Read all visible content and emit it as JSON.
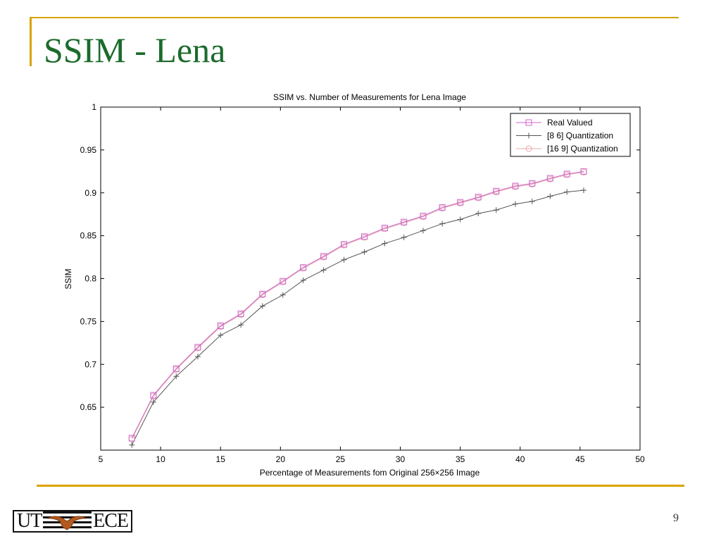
{
  "slide": {
    "title": "SSIM - Lena",
    "page_number": "9"
  },
  "logo": {
    "left_text": "UT",
    "right_text": "ECE"
  },
  "colors": {
    "accent": "#d9a300",
    "title": "#1b6b2c",
    "real_valued": "#cc66cc",
    "quant_8_6": "#555555",
    "quant_16_9": "#e8a8a8"
  },
  "chart_data": {
    "type": "line",
    "title": "SSIM vs. Number of Measurements for Lena Image",
    "xlabel": "Percentage of Measurements fom Original 256×256 Image",
    "ylabel": "SSIM",
    "xlim": [
      5,
      50
    ],
    "ylim": [
      0.6,
      1.0
    ],
    "xticks": [
      5,
      10,
      15,
      20,
      25,
      30,
      35,
      40,
      45,
      50
    ],
    "yticks": [
      0.65,
      0.7,
      0.75,
      0.8,
      0.85,
      0.9,
      0.95,
      1
    ],
    "ytick_labels": [
      "0.65",
      "0.7",
      "0.75",
      "0.8",
      "0.85",
      "0.9",
      "0.95",
      "1"
    ],
    "grid": false,
    "legend_position": "top-right",
    "x": [
      7.6,
      9.4,
      11.3,
      13.1,
      15.0,
      16.7,
      18.5,
      20.2,
      21.9,
      23.6,
      25.3,
      27.0,
      28.7,
      30.3,
      31.9,
      33.5,
      35.0,
      36.5,
      38.0,
      39.6,
      41.0,
      42.5,
      43.9,
      45.3
    ],
    "series": [
      {
        "name": "Real Valued",
        "marker": "square",
        "color": "#cc66cc",
        "values": [
          0.614,
          0.664,
          0.695,
          0.72,
          0.745,
          0.759,
          0.782,
          0.797,
          0.813,
          0.826,
          0.84,
          0.849,
          0.859,
          0.866,
          0.873,
          0.883,
          0.889,
          0.895,
          0.902,
          0.908,
          0.911,
          0.917,
          0.922,
          0.925
        ]
      },
      {
        "name": "[8 6] Quantization",
        "marker": "plus",
        "color": "#555555",
        "values": [
          0.606,
          0.656,
          0.686,
          0.709,
          0.734,
          0.746,
          0.768,
          0.781,
          0.798,
          0.81,
          0.822,
          0.831,
          0.841,
          0.848,
          0.856,
          0.864,
          0.869,
          0.876,
          0.88,
          0.887,
          0.89,
          0.896,
          0.901,
          0.903
        ]
      },
      {
        "name": "[16 9] Quantization",
        "marker": "circle",
        "color": "#e8a8a8",
        "values": [
          0.613,
          0.663,
          0.694,
          0.719,
          0.744,
          0.758,
          0.781,
          0.796,
          0.812,
          0.825,
          0.839,
          0.848,
          0.858,
          0.865,
          0.872,
          0.882,
          0.888,
          0.894,
          0.901,
          0.907,
          0.91,
          0.916,
          0.921,
          0.924
        ]
      }
    ]
  }
}
